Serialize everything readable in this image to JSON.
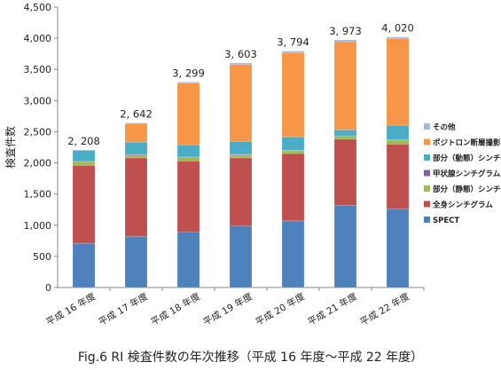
{
  "caption": "Fig.6 RI 検査件数の年次推移（平成 16 年度〜平成 22 年度）",
  "chart_data": {
    "type": "bar",
    "stacked": true,
    "ylabel": "検査件数",
    "ylim": [
      0,
      4500
    ],
    "yticks": [
      0,
      500,
      1000,
      1500,
      2000,
      2500,
      3000,
      3500,
      4000,
      4500
    ],
    "ytick_labels": [
      "0",
      "500",
      "1,000",
      "1,500",
      "2,000",
      "2,500",
      "3,000",
      "3,500",
      "4,000",
      "4,500"
    ],
    "grid": false,
    "legend_position": "right",
    "categories": [
      "平成 16 年度",
      "平成 17 年度",
      "平成 18 年度",
      "平成 19 年度",
      "平成 20 年度",
      "平成 21 年度",
      "平成 22 年度"
    ],
    "totals": [
      2208,
      2642,
      3299,
      3603,
      3794,
      3973,
      4020
    ],
    "total_labels": [
      "2, 208",
      "2, 642",
      "3, 299",
      "3, 603",
      "3, 794",
      "3, 973",
      "4, 020"
    ],
    "series": [
      {
        "name": "SPECT",
        "color": "#4f81bd",
        "values": [
          710,
          820,
          890,
          990,
          1070,
          1320,
          1260
        ]
      },
      {
        "name": "全身シンチグラム",
        "color": "#c0504d",
        "values": [
          1250,
          1260,
          1140,
          1090,
          1080,
          1060,
          1040
        ]
      },
      {
        "name": "部分（静態）シンチグラム",
        "color": "#9bbb59",
        "values": [
          60,
          45,
          55,
          45,
          45,
          45,
          65
        ]
      },
      {
        "name": "甲状腺シンチグラム",
        "color": "#8064a2",
        "values": [
          15,
          12,
          10,
          10,
          10,
          10,
          10
        ]
      },
      {
        "name": "部分（動態）シンチグラム",
        "color": "#4bacc6",
        "values": [
          165,
          195,
          195,
          210,
          210,
          95,
          230
        ]
      },
      {
        "name": "ポジトロン断層撮影",
        "color": "#f79646",
        "values": [
          0,
          300,
          990,
          1235,
          1355,
          1415,
          1395
        ]
      },
      {
        "name": "その他",
        "color": "#a5b8d9",
        "values": [
          8,
          10,
          19,
          23,
          24,
          28,
          20
        ]
      }
    ]
  }
}
